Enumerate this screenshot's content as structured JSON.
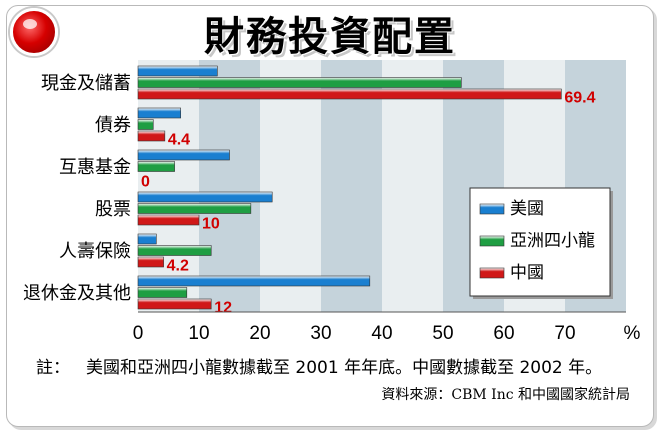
{
  "header": {
    "title": "財務投資配置"
  },
  "chart_data": {
    "type": "bar",
    "orientation": "horizontal",
    "title": "財務投資配置",
    "categories": [
      "現金及儲蓄",
      "債券",
      "互惠基金",
      "股票",
      "人壽保險",
      "退休金及其他"
    ],
    "series": [
      {
        "name": "美國",
        "color": "#1a7fd0",
        "values": [
          13,
          7,
          15,
          22,
          3,
          38
        ]
      },
      {
        "name": "亞洲四小龍",
        "color": "#1f9e43",
        "values": [
          53,
          2.5,
          6,
          18.5,
          12,
          8
        ]
      },
      {
        "name": "中國",
        "color": "#d01818",
        "values": [
          69.4,
          4.4,
          0,
          10,
          4.2,
          12
        ]
      }
    ],
    "data_labels": {
      "series": "中國",
      "values": [
        "69.4",
        "4.4",
        "0",
        "10",
        "4.2",
        "12"
      ]
    },
    "xlim": [
      0,
      80
    ],
    "xticks": [
      "0",
      "10",
      "20",
      "30",
      "40",
      "50",
      "60",
      "70"
    ],
    "x_unit": "%",
    "legend_position": "lower-right",
    "grid": "alternating bands"
  },
  "footnote": {
    "label": "註：",
    "text": "美國和亞洲四小龍數據截至 2001 年年底。中國數據截至 2002 年。"
  },
  "source": {
    "text": "資料來源：CBM Inc 和中國國家統計局"
  }
}
